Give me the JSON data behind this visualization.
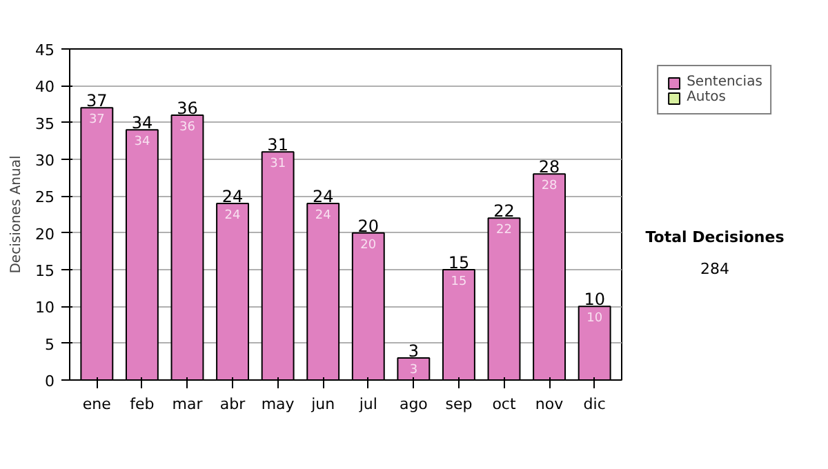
{
  "chart_data": {
    "type": "bar",
    "ylabel": "Decisiones Anual",
    "categories": [
      "ene",
      "feb",
      "mar",
      "abr",
      "may",
      "jun",
      "jul",
      "ago",
      "sep",
      "oct",
      "nov",
      "dic"
    ],
    "series": [
      {
        "name": "Sentencias",
        "color": "#e080c0",
        "values": [
          37,
          34,
          36,
          24,
          31,
          24,
          20,
          3,
          15,
          22,
          28,
          10
        ]
      },
      {
        "name": "Autos",
        "color": "#d8f0a0",
        "values": [
          null,
          null,
          null,
          null,
          null,
          null,
          null,
          null,
          null,
          null,
          null,
          null
        ]
      }
    ],
    "totals": [
      "37",
      "34",
      "36",
      "24",
      "31",
      "24",
      "20",
      "3",
      "15",
      "22",
      "28",
      "10"
    ],
    "data_labels": true,
    "ylim": [
      0,
      45
    ],
    "yticks": [
      0,
      5,
      10,
      15,
      20,
      25,
      30,
      35,
      40,
      45
    ],
    "grid": "y",
    "legend": "right",
    "annotations": [
      "Total Decisiones",
      "284"
    ]
  }
}
